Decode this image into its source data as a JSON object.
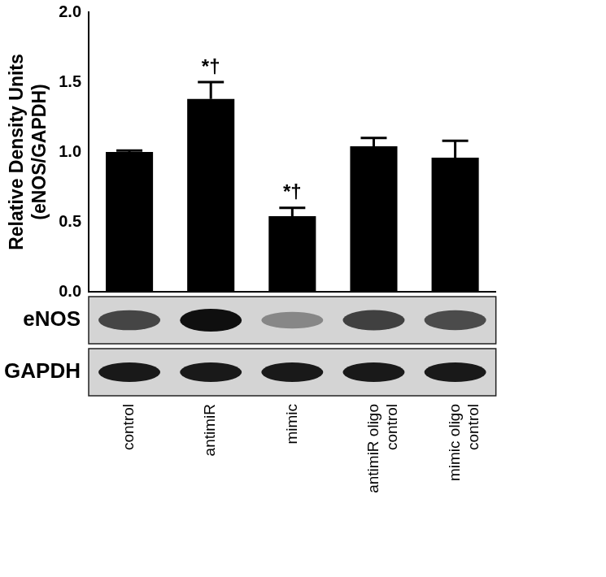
{
  "chart_data": {
    "type": "bar",
    "y_label": [
      "Relative Density Units",
      "(eNOS/GAPDH)"
    ],
    "categories": [
      "control",
      "antimiR",
      "mimic",
      "antimiR oligo control",
      "mimic oligo control"
    ],
    "values": [
      1.0,
      1.38,
      0.54,
      1.04,
      0.96
    ],
    "errors": [
      0.01,
      0.12,
      0.06,
      0.06,
      0.12
    ],
    "color": "#000000",
    "ylim": [
      0,
      2
    ],
    "yticks": [
      {
        "value": 0,
        "label": "0.0"
      },
      {
        "value": 0.5,
        "label": "0.5"
      },
      {
        "value": 1,
        "label": "1.0"
      },
      {
        "value": 1.5,
        "label": "1.5"
      },
      {
        "value": 2,
        "label": "2.0"
      }
    ],
    "grid": false,
    "annotations": [
      {
        "category": "antimiR",
        "text": "*†"
      },
      {
        "category": "mimic",
        "text": "*†"
      }
    ],
    "blot_labels": [
      "eNOS",
      "GAPDH"
    ]
  }
}
